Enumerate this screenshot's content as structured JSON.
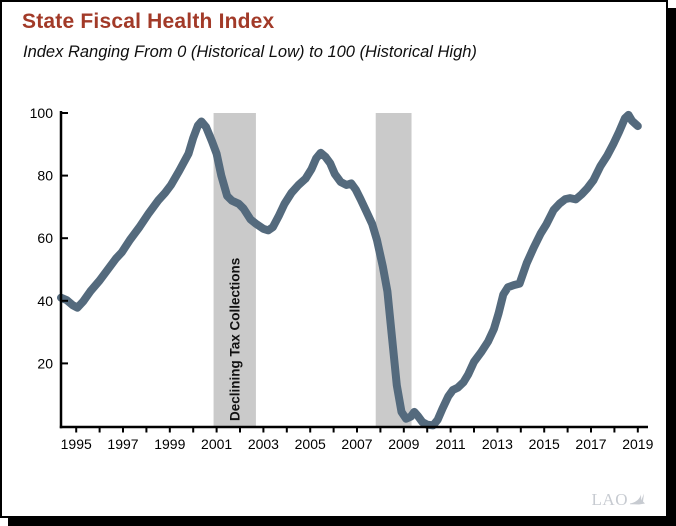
{
  "header": {
    "title": "State Fiscal Health Index",
    "subtitle": "Index Ranging From 0 (Historical Low) to 100 (Historical High)"
  },
  "watermark": {
    "logo_text": "LAO"
  },
  "chart_data": {
    "type": "line",
    "title": "State Fiscal Health Index",
    "subtitle": "Index Ranging From 0 (Historical Low) to 100 (Historical High)",
    "xlabel": "",
    "ylabel": "",
    "xlim": [
      1994.35,
      2019.35
    ],
    "ylim": [
      0,
      100
    ],
    "yticks": [
      20,
      40,
      60,
      80,
      100
    ],
    "xtick_minor_years": [
      1995,
      1996,
      1997,
      1998,
      1999,
      2000,
      2001,
      2002,
      2003,
      2004,
      2005,
      2006,
      2007,
      2008,
      2009,
      2010,
      2011,
      2012,
      2013,
      2014,
      2015,
      2016,
      2017,
      2018,
      2019
    ],
    "xtick_labels": [
      1995,
      1997,
      1999,
      2001,
      2003,
      2005,
      2007,
      2009,
      2011,
      2013,
      2015,
      2017,
      2019
    ],
    "grid": false,
    "legend": false,
    "colors": {
      "line": "#546a7d",
      "band": "#cacaca",
      "band_label": "#111111",
      "title": "#a23a28",
      "axis": "#000000",
      "logo": "#c7cbd1"
    },
    "bands": [
      {
        "x0": 2000.87,
        "x1": 2002.68,
        "label": "Declining Tax Collections"
      },
      {
        "x0": 2007.8,
        "x1": 2009.33,
        "label": ""
      }
    ],
    "series": [
      {
        "name": "State Fiscal Health Index",
        "points": [
          [
            1994.35,
            41
          ],
          [
            1994.6,
            40.2
          ],
          [
            1994.85,
            38.6
          ],
          [
            1995.05,
            37.8
          ],
          [
            1995.3,
            39.8
          ],
          [
            1995.6,
            43
          ],
          [
            1996.0,
            46.5
          ],
          [
            1996.35,
            50
          ],
          [
            1996.7,
            53.5
          ],
          [
            1996.95,
            55.5
          ],
          [
            1997.3,
            59.5
          ],
          [
            1997.7,
            63.5
          ],
          [
            1998.1,
            68
          ],
          [
            1998.5,
            72
          ],
          [
            1998.8,
            74.5
          ],
          [
            1999.05,
            77
          ],
          [
            1999.4,
            81.5
          ],
          [
            1999.8,
            87
          ],
          [
            2000.0,
            92
          ],
          [
            2000.2,
            96
          ],
          [
            2000.35,
            97.3
          ],
          [
            2000.55,
            95.5
          ],
          [
            2000.8,
            91
          ],
          [
            2001.0,
            87
          ],
          [
            2001.2,
            80
          ],
          [
            2001.45,
            73.5
          ],
          [
            2001.65,
            72
          ],
          [
            2001.95,
            71
          ],
          [
            2002.15,
            69.5
          ],
          [
            2002.45,
            66
          ],
          [
            2002.7,
            64.5
          ],
          [
            2003.0,
            63
          ],
          [
            2003.2,
            62.5
          ],
          [
            2003.4,
            63.5
          ],
          [
            2003.65,
            67
          ],
          [
            2003.9,
            71
          ],
          [
            2004.2,
            74.5
          ],
          [
            2004.5,
            77
          ],
          [
            2004.8,
            79
          ],
          [
            2005.05,
            82
          ],
          [
            2005.25,
            85.5
          ],
          [
            2005.45,
            87.3
          ],
          [
            2005.65,
            86
          ],
          [
            2005.85,
            84
          ],
          [
            2006.05,
            80.5
          ],
          [
            2006.3,
            78
          ],
          [
            2006.55,
            77
          ],
          [
            2006.75,
            77.5
          ],
          [
            2006.95,
            75.5
          ],
          [
            2007.15,
            72.5
          ],
          [
            2007.4,
            68.5
          ],
          [
            2007.65,
            64.5
          ],
          [
            2007.85,
            59.5
          ],
          [
            2008.1,
            51
          ],
          [
            2008.3,
            43
          ],
          [
            2008.5,
            28
          ],
          [
            2008.7,
            13
          ],
          [
            2008.9,
            4.5
          ],
          [
            2009.1,
            2.3
          ],
          [
            2009.3,
            3
          ],
          [
            2009.45,
            4.5
          ],
          [
            2009.6,
            3.2
          ],
          [
            2009.8,
            1.2
          ],
          [
            2010.0,
            0.4
          ],
          [
            2010.25,
            0.2
          ],
          [
            2010.45,
            2
          ],
          [
            2010.65,
            5.5
          ],
          [
            2010.9,
            9.5
          ],
          [
            2011.1,
            11.5
          ],
          [
            2011.3,
            12.2
          ],
          [
            2011.55,
            14
          ],
          [
            2011.75,
            16.5
          ],
          [
            2012.0,
            20.5
          ],
          [
            2012.3,
            23.5
          ],
          [
            2012.6,
            27
          ],
          [
            2012.85,
            31
          ],
          [
            2013.05,
            36
          ],
          [
            2013.25,
            42
          ],
          [
            2013.45,
            44.3
          ],
          [
            2013.7,
            45
          ],
          [
            2013.95,
            45.5
          ],
          [
            2014.25,
            52
          ],
          [
            2014.55,
            57
          ],
          [
            2014.85,
            61.5
          ],
          [
            2015.1,
            64.5
          ],
          [
            2015.4,
            69
          ],
          [
            2015.65,
            71
          ],
          [
            2015.9,
            72.5
          ],
          [
            2016.1,
            72.8
          ],
          [
            2016.35,
            72.4
          ],
          [
            2016.6,
            74
          ],
          [
            2016.85,
            76
          ],
          [
            2017.1,
            78.5
          ],
          [
            2017.4,
            83
          ],
          [
            2017.7,
            86.5
          ],
          [
            2017.95,
            90
          ],
          [
            2018.2,
            94
          ],
          [
            2018.45,
            98.3
          ],
          [
            2018.6,
            99.4
          ],
          [
            2018.75,
            97.5
          ],
          [
            2019.0,
            95.8
          ]
        ]
      }
    ]
  }
}
